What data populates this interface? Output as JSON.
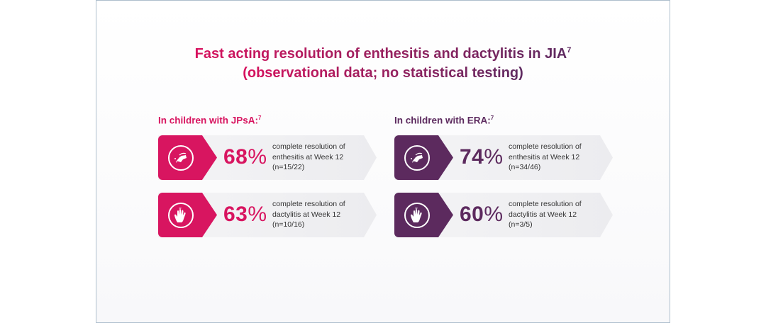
{
  "title": {
    "line1": "Fast acting resolution of enthesitis and dactylitis in JIA",
    "line1_sup": "7",
    "line2": "(observational data; no statistical testing)"
  },
  "colors": {
    "jpsa": "#d81560",
    "era": "#5c2a5e"
  },
  "groups": [
    {
      "label": "In children with JPsA:",
      "sup": "7",
      "cards": [
        {
          "icon": "enthesitis-joint-icon",
          "value": "68",
          "unit": "%",
          "line1": "complete resolution of",
          "line2": "enthesitis at Week 12",
          "line3": "(n=15/22)"
        },
        {
          "icon": "dactylitis-hand-icon",
          "value": "63",
          "unit": "%",
          "line1": "complete resolution of",
          "line2": "dactylitis at Week 12",
          "line3": "(n=10/16)"
        }
      ]
    },
    {
      "label": "In children with ERA:",
      "sup": "7",
      "cards": [
        {
          "icon": "enthesitis-joint-icon",
          "value": "74",
          "unit": "%",
          "line1": "complete resolution of",
          "line2": "enthesitis at Week 12",
          "line3": "(n=34/46)"
        },
        {
          "icon": "dactylitis-hand-icon",
          "value": "60",
          "unit": "%",
          "line1": "complete resolution of",
          "line2": "dactylitis at Week 12",
          "line3": "(n=3/5)"
        }
      ]
    }
  ]
}
